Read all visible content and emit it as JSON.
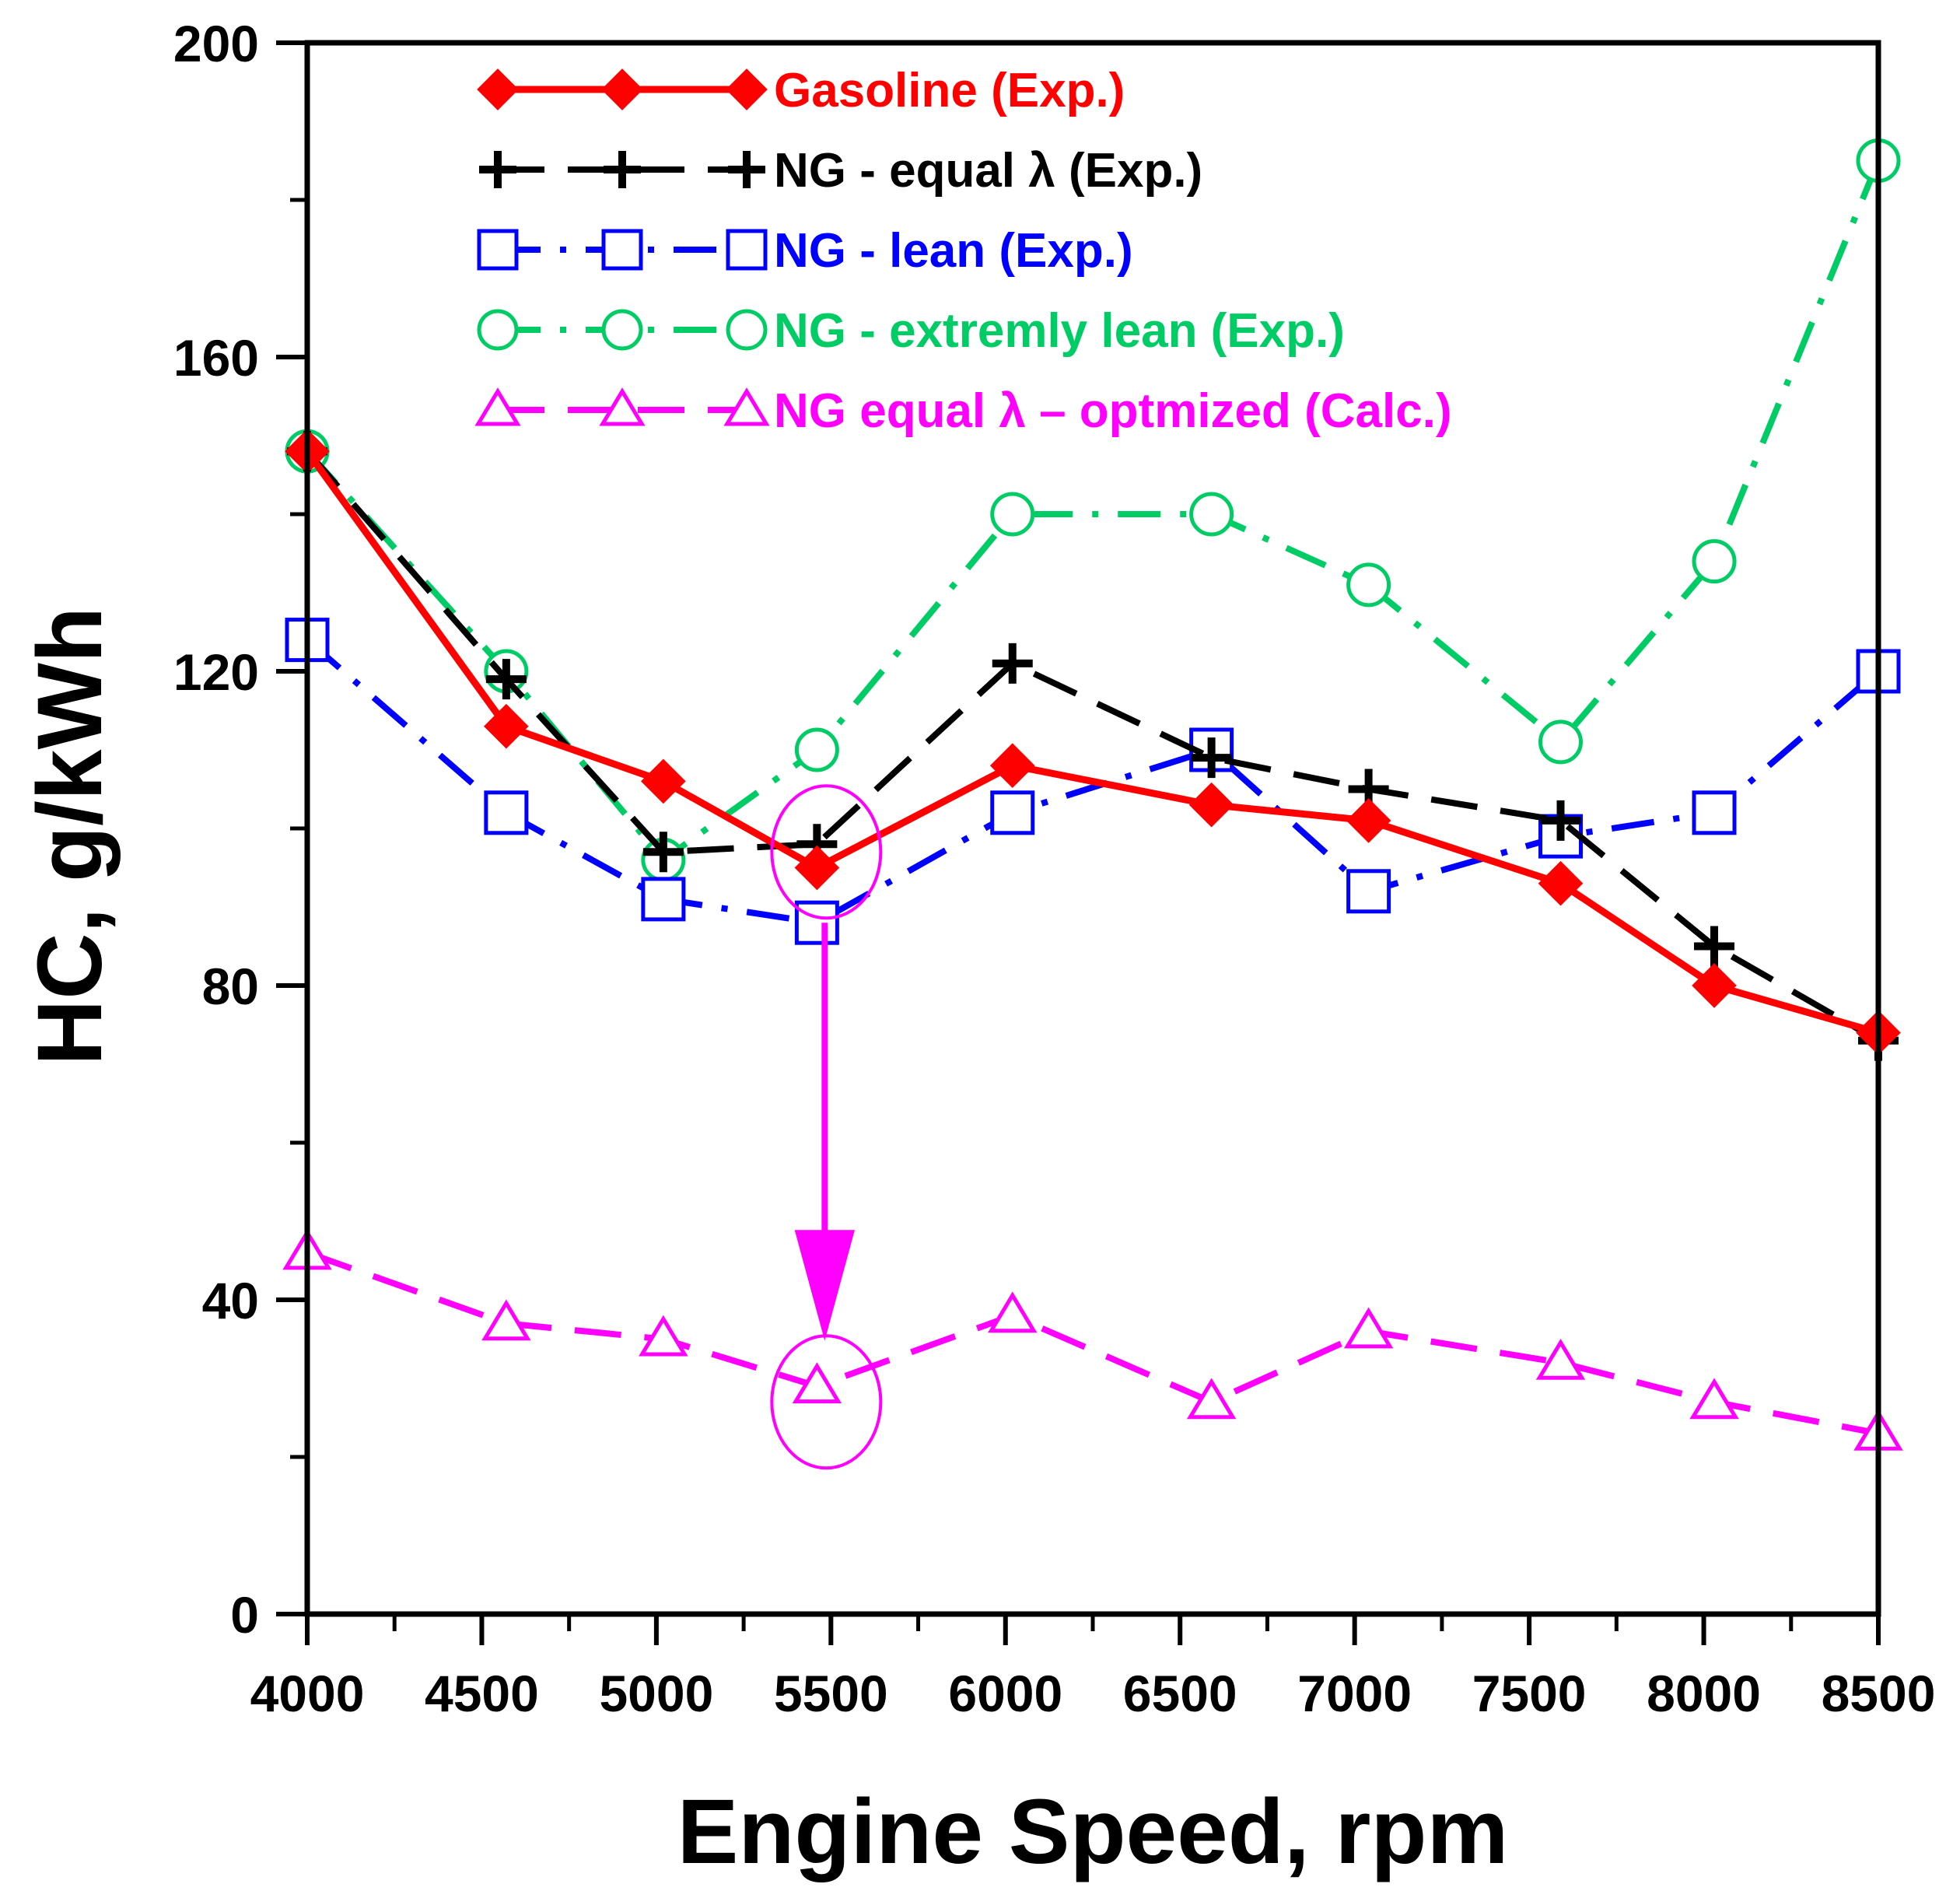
{
  "chart_data": {
    "type": "line",
    "xlabel": "Engine Speed, rpm",
    "ylabel": "HC, g/kWh",
    "xlim": [
      4000,
      8500
    ],
    "ylim": [
      0,
      200
    ],
    "xticks": [
      "4000",
      "4500",
      "5000",
      "5500",
      "6000",
      "6500",
      "7000",
      "7500",
      "8000",
      "8500"
    ],
    "yticks": [
      "0",
      "40",
      "80",
      "120",
      "160",
      "200"
    ],
    "legend_position": "top",
    "series": [
      {
        "name": "Gasoline (Exp.)",
        "color": "#ff0000",
        "marker": "diamond",
        "style": "solid",
        "x": [
          4000,
          4570,
          5020,
          5460,
          6020,
          6590,
          7040,
          7590,
          8030,
          8500
        ],
        "values": [
          148,
          113,
          106,
          95,
          108,
          103,
          101,
          93,
          80,
          74
        ]
      },
      {
        "name": "NG - equal λ (Exp.)",
        "color": "#000000",
        "marker": "plus",
        "style": "dashed",
        "x": [
          4000,
          4570,
          5020,
          5460,
          6020,
          6590,
          7040,
          7590,
          8030,
          8500
        ],
        "values": [
          148,
          119,
          97,
          98,
          121,
          109,
          105,
          101,
          85,
          73
        ]
      },
      {
        "name": "NG - lean (Exp.)",
        "color": "#0000ff",
        "marker": "square",
        "style": "dashdot",
        "x": [
          4000,
          4570,
          5020,
          5460,
          6020,
          6590,
          7040,
          7590,
          8030,
          8500
        ],
        "values": [
          124,
          102,
          91,
          88,
          102,
          110,
          92,
          99,
          102,
          120
        ]
      },
      {
        "name": "NG - extremly lean (Exp.)",
        "color": "#00cc66",
        "marker": "circle",
        "style": "dashdot",
        "x": [
          4000,
          4570,
          5020,
          5460,
          6020,
          6590,
          7040,
          7590,
          8030,
          8500
        ],
        "values": [
          148,
          120,
          96,
          110,
          140,
          140,
          131,
          111,
          134,
          185
        ]
      },
      {
        "name": "NG equal λ – optmized (Calc.)",
        "color": "#ff00ff",
        "marker": "triangle",
        "style": "dashed",
        "x": [
          4000,
          4570,
          5020,
          5460,
          6020,
          6590,
          7040,
          7590,
          8030,
          8500
        ],
        "values": [
          46,
          37,
          35,
          29,
          38,
          27,
          36,
          32,
          27,
          23
        ]
      }
    ],
    "annotations": [
      {
        "type": "ellipse",
        "x": 5500,
        "y": 97,
        "color": "#ff00ff"
      },
      {
        "type": "ellipse",
        "x": 5500,
        "y": 27,
        "color": "#ff00ff"
      },
      {
        "type": "arrow",
        "x": 5500,
        "from_y": 88,
        "to_y": 32,
        "color": "#ff00ff"
      }
    ]
  }
}
